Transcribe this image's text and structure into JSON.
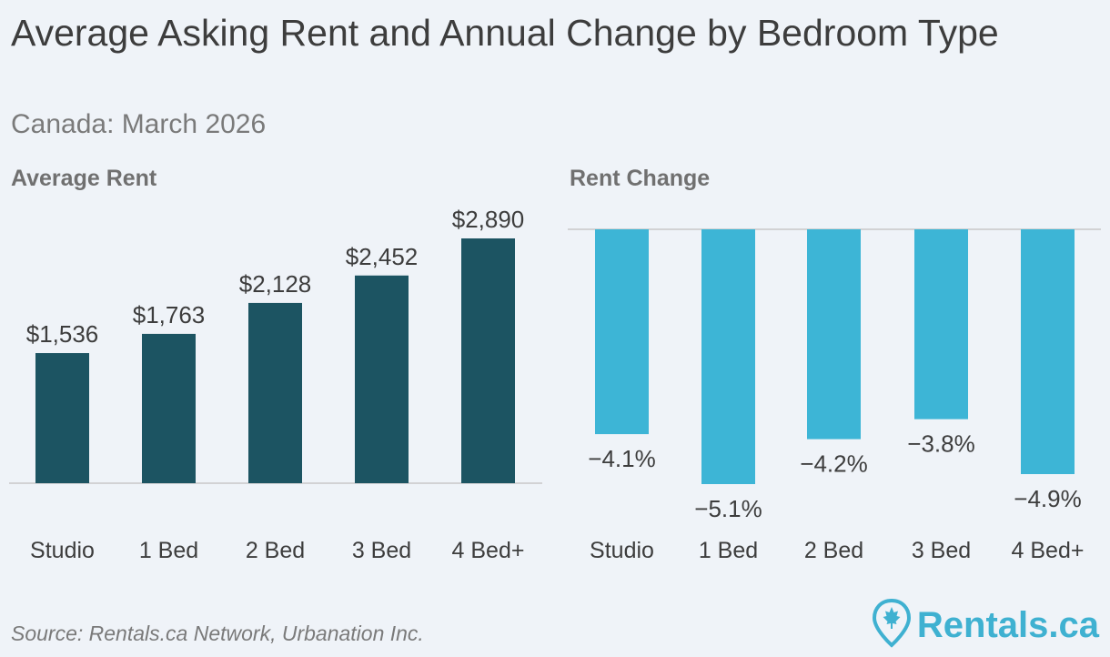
{
  "header": {
    "title": "Average Asking Rent and Annual Change by Bedroom Type",
    "subtitle": "Canada: March 2026"
  },
  "colors": {
    "rent_bar": "#1c5462",
    "change_bar": "#3db5d6",
    "axis_line": "#c8c8c8",
    "brand": "#3fb1d1"
  },
  "chart_data": [
    {
      "type": "bar",
      "title": "Average Rent",
      "categories": [
        "Studio",
        "1 Bed",
        "2 Bed",
        "3 Bed",
        "4 Bed+"
      ],
      "values": [
        1536,
        1763,
        2128,
        2452,
        2890
      ],
      "value_labels": [
        "$1,536",
        "$1,763",
        "$2,128",
        "$2,452",
        "$2,890"
      ],
      "ylim": [
        0,
        2890
      ],
      "grid": false
    },
    {
      "type": "bar",
      "title": "Rent Change",
      "categories": [
        "Studio",
        "1 Bed",
        "2 Bed",
        "3 Bed",
        "4 Bed+"
      ],
      "values": [
        -4.1,
        -5.1,
        -4.2,
        -3.8,
        -4.9
      ],
      "value_labels": [
        "−4.1%",
        "−5.1%",
        "−4.2%",
        "−3.8%",
        "−4.9%"
      ],
      "ylim": [
        -5.1,
        0
      ],
      "grid": false
    }
  ],
  "footer": {
    "source": "Source: Rentals.ca Network, Urbanation Inc.",
    "brand_name": "Rentals.ca",
    "brand_icon": "map-pin-maple-leaf-icon"
  }
}
